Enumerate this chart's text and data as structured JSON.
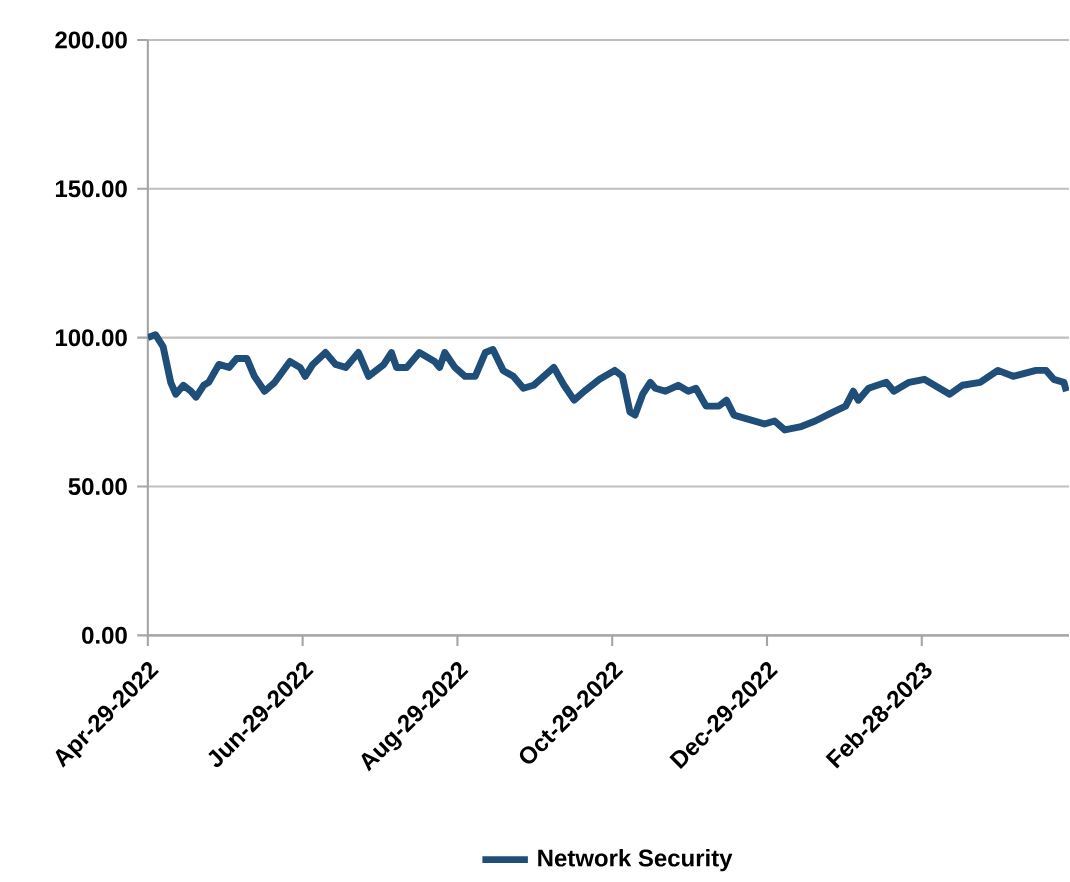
{
  "chart_data": {
    "type": "line",
    "x": [
      "2022-04-29",
      "2022-05-02",
      "2022-05-05",
      "2022-05-08",
      "2022-05-10",
      "2022-05-13",
      "2022-05-16",
      "2022-05-18",
      "2022-05-21",
      "2022-05-23",
      "2022-05-27",
      "2022-05-31",
      "2022-06-03",
      "2022-06-07",
      "2022-06-10",
      "2022-06-14",
      "2022-06-18",
      "2022-06-24",
      "2022-06-28",
      "2022-06-30",
      "2022-07-03",
      "2022-07-08",
      "2022-07-12",
      "2022-07-16",
      "2022-07-21",
      "2022-07-25",
      "2022-07-31",
      "2022-08-03",
      "2022-08-05",
      "2022-08-09",
      "2022-08-14",
      "2022-08-20",
      "2022-08-22",
      "2022-08-24",
      "2022-08-28",
      "2022-09-01",
      "2022-09-05",
      "2022-09-09",
      "2022-09-12",
      "2022-09-16",
      "2022-09-20",
      "2022-09-24",
      "2022-09-28",
      "2022-10-02",
      "2022-10-06",
      "2022-10-10",
      "2022-10-14",
      "2022-10-18",
      "2022-10-24",
      "2022-10-30",
      "2022-11-02",
      "2022-11-05",
      "2022-11-07",
      "2022-11-10",
      "2022-11-13",
      "2022-11-15",
      "2022-11-19",
      "2022-11-24",
      "2022-11-28",
      "2022-12-01",
      "2022-12-05",
      "2022-12-10",
      "2022-12-13",
      "2022-12-16",
      "2022-12-24",
      "2022-12-28",
      "2023-01-01",
      "2023-01-05",
      "2023-01-11",
      "2023-01-17",
      "2023-01-24",
      "2023-01-29",
      "2023-02-01",
      "2023-02-03",
      "2023-02-07",
      "2023-02-14",
      "2023-02-17",
      "2023-02-23",
      "2023-03-01",
      "2023-03-07",
      "2023-03-11",
      "2023-03-16",
      "2023-03-23",
      "2023-03-30",
      "2023-04-05",
      "2023-04-14",
      "2023-04-18",
      "2023-04-21",
      "2023-04-25",
      "2023-04-26"
    ],
    "series": [
      {
        "name": "Network Security",
        "color": "#1f4e79",
        "values": [
          100,
          101,
          97,
          85,
          81,
          84,
          82,
          80,
          84,
          85,
          91,
          90,
          93,
          93,
          87,
          82,
          85,
          92,
          90,
          87,
          91,
          95,
          91,
          90,
          95,
          87,
          91,
          95,
          90,
          90,
          95,
          92,
          90,
          95,
          90,
          87,
          87,
          95,
          96,
          89,
          87,
          83,
          84,
          87,
          90,
          84,
          79,
          82,
          86,
          89,
          87,
          75,
          74,
          81,
          85,
          83,
          82,
          84,
          82,
          83,
          77,
          77,
          79,
          74,
          72,
          71,
          72,
          69,
          70,
          72,
          75,
          77,
          82,
          79,
          83,
          85,
          82,
          85,
          86,
          83,
          81,
          84,
          85,
          89,
          87,
          89,
          89,
          86,
          85,
          82
        ]
      }
    ],
    "xlim": [
      "2022-04-29",
      "2023-04-27"
    ],
    "xticks": [
      {
        "value": "2022-04-29",
        "label": "Apr-29-2022"
      },
      {
        "value": "2022-06-29",
        "label": "Jun-29-2022"
      },
      {
        "value": "2022-08-29",
        "label": "Aug-29-2022"
      },
      {
        "value": "2022-10-29",
        "label": "Oct-29-2022"
      },
      {
        "value": "2022-12-29",
        "label": "Dec-29-2022"
      },
      {
        "value": "2023-02-28",
        "label": "Feb-28-2023"
      }
    ],
    "ylim": [
      0,
      200
    ],
    "yticks": [
      {
        "value": 0,
        "label": "0.00"
      },
      {
        "value": 50,
        "label": "50.00"
      },
      {
        "value": 100,
        "label": "100.00"
      },
      {
        "value": 150,
        "label": "150.00"
      },
      {
        "value": 200,
        "label": "200.00"
      }
    ],
    "grid": "y",
    "legend": "bottom",
    "line_style": "solid"
  }
}
